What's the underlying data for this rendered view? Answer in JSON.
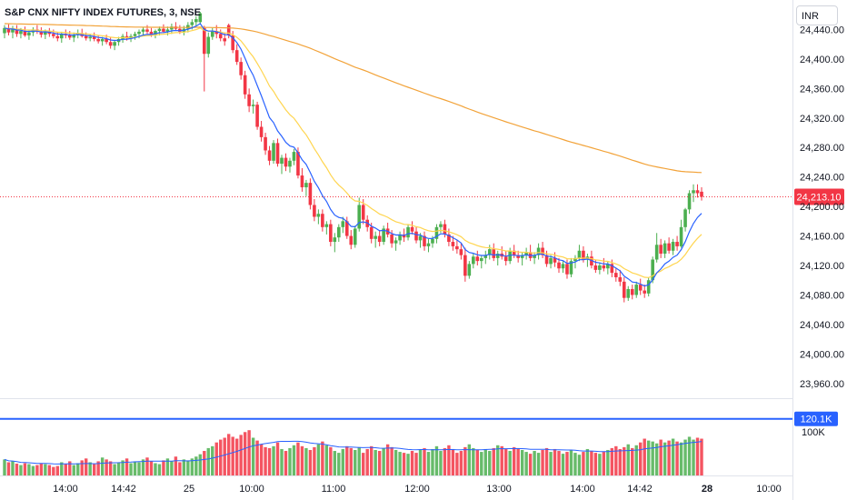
{
  "header": {
    "title": "S&P CNX NIFTY INDEX FUTURES, 3, NSE",
    "currency": "INR"
  },
  "price_axis": {
    "ticks": [
      "24,440.00",
      "24,400.00",
      "24,360.00",
      "24,320.00",
      "24,280.00",
      "24,240.00",
      "24,200.00",
      "24,160.00",
      "24,120.00",
      "24,080.00",
      "24,040.00",
      "24,000.00",
      "23,960.00"
    ],
    "tick_values": [
      24440,
      24400,
      24360,
      24320,
      24280,
      24240,
      24200,
      24160,
      24120,
      24080,
      24040,
      24000,
      23960
    ],
    "last_price_label": "24,213.10",
    "last_price": 24213.1
  },
  "volume_axis": {
    "ticks": [
      "100K"
    ],
    "tick_values": [
      100000
    ],
    "level_label": "120.1K",
    "level_value": 120100
  },
  "time_axis": {
    "labels": [
      "14:00",
      "14:42",
      "25",
      "10:00",
      "11:00",
      "12:00",
      "13:00",
      "14:00",
      "14:42",
      "28",
      "10:00"
    ],
    "bold": [
      false,
      false,
      false,
      false,
      false,
      false,
      false,
      false,
      false,
      true,
      false
    ]
  },
  "colors": {
    "up": "#4caf50",
    "down": "#f23645",
    "ma_fast": "#2962ff",
    "ma_mid": "#ffd54f",
    "ma_slow": "#f2a33a",
    "level_line": "#2962ff",
    "price_label_bg": "#f23645"
  },
  "chart_data": {
    "type": "candlestick",
    "ylim": [
      23940,
      24480
    ],
    "candles": [
      {
        "o": 24435,
        "h": 24446,
        "l": 24428,
        "c": 24442
      },
      {
        "o": 24442,
        "h": 24447,
        "l": 24432,
        "c": 24436
      },
      {
        "o": 24436,
        "h": 24445,
        "l": 24428,
        "c": 24440
      },
      {
        "o": 24440,
        "h": 24446,
        "l": 24430,
        "c": 24434
      },
      {
        "o": 24434,
        "h": 24442,
        "l": 24428,
        "c": 24438
      },
      {
        "o": 24438,
        "h": 24444,
        "l": 24430,
        "c": 24432
      },
      {
        "o": 24432,
        "h": 24440,
        "l": 24426,
        "c": 24436
      },
      {
        "o": 24436,
        "h": 24443,
        "l": 24431,
        "c": 24440
      },
      {
        "o": 24440,
        "h": 24446,
        "l": 24434,
        "c": 24437
      },
      {
        "o": 24437,
        "h": 24443,
        "l": 24429,
        "c": 24433
      },
      {
        "o": 24433,
        "h": 24440,
        "l": 24427,
        "c": 24437
      },
      {
        "o": 24437,
        "h": 24442,
        "l": 24430,
        "c": 24434
      },
      {
        "o": 24434,
        "h": 24440,
        "l": 24428,
        "c": 24431
      },
      {
        "o": 24431,
        "h": 24437,
        "l": 24424,
        "c": 24428
      },
      {
        "o": 24428,
        "h": 24437,
        "l": 24422,
        "c": 24434
      },
      {
        "o": 24434,
        "h": 24440,
        "l": 24428,
        "c": 24432
      },
      {
        "o": 24432,
        "h": 24438,
        "l": 24426,
        "c": 24429
      },
      {
        "o": 24429,
        "h": 24436,
        "l": 24423,
        "c": 24433
      },
      {
        "o": 24433,
        "h": 24440,
        "l": 24428,
        "c": 24435
      },
      {
        "o": 24435,
        "h": 24441,
        "l": 24429,
        "c": 24431
      },
      {
        "o": 24431,
        "h": 24436,
        "l": 24425,
        "c": 24428
      },
      {
        "o": 24428,
        "h": 24434,
        "l": 24424,
        "c": 24430
      },
      {
        "o": 24430,
        "h": 24436,
        "l": 24424,
        "c": 24427
      },
      {
        "o": 24427,
        "h": 24432,
        "l": 24421,
        "c": 24424
      },
      {
        "o": 24424,
        "h": 24430,
        "l": 24418,
        "c": 24427
      },
      {
        "o": 24427,
        "h": 24433,
        "l": 24420,
        "c": 24423
      },
      {
        "o": 24423,
        "h": 24429,
        "l": 24414,
        "c": 24418
      },
      {
        "o": 24418,
        "h": 24426,
        "l": 24412,
        "c": 24423
      },
      {
        "o": 24423,
        "h": 24430,
        "l": 24418,
        "c": 24427
      },
      {
        "o": 24427,
        "h": 24434,
        "l": 24422,
        "c": 24431
      },
      {
        "o": 24431,
        "h": 24437,
        "l": 24425,
        "c": 24428
      },
      {
        "o": 24428,
        "h": 24434,
        "l": 24423,
        "c": 24431
      },
      {
        "o": 24431,
        "h": 24437,
        "l": 24426,
        "c": 24434
      },
      {
        "o": 24434,
        "h": 24440,
        "l": 24428,
        "c": 24437
      },
      {
        "o": 24437,
        "h": 24443,
        "l": 24431,
        "c": 24440
      },
      {
        "o": 24440,
        "h": 24446,
        "l": 24434,
        "c": 24437
      },
      {
        "o": 24437,
        "h": 24442,
        "l": 24430,
        "c": 24433
      },
      {
        "o": 24433,
        "h": 24440,
        "l": 24428,
        "c": 24438
      },
      {
        "o": 24438,
        "h": 24444,
        "l": 24432,
        "c": 24441
      },
      {
        "o": 24441,
        "h": 24447,
        "l": 24435,
        "c": 24437
      },
      {
        "o": 24437,
        "h": 24444,
        "l": 24432,
        "c": 24440
      },
      {
        "o": 24440,
        "h": 24448,
        "l": 24434,
        "c": 24444
      },
      {
        "o": 24444,
        "h": 24450,
        "l": 24438,
        "c": 24441
      },
      {
        "o": 24441,
        "h": 24446,
        "l": 24434,
        "c": 24437
      },
      {
        "o": 24437,
        "h": 24445,
        "l": 24432,
        "c": 24441
      },
      {
        "o": 24441,
        "h": 24450,
        "l": 24436,
        "c": 24446
      },
      {
        "o": 24446,
        "h": 24454,
        "l": 24440,
        "c": 24450
      },
      {
        "o": 24450,
        "h": 24458,
        "l": 24445,
        "c": 24454
      },
      {
        "o": 24450,
        "h": 24464,
        "l": 24448,
        "c": 24462
      },
      {
        "o": 24442,
        "h": 24445,
        "l": 24356,
        "c": 24407
      },
      {
        "o": 24407,
        "h": 24436,
        "l": 24402,
        "c": 24430
      },
      {
        "o": 24430,
        "h": 24442,
        "l": 24426,
        "c": 24438
      },
      {
        "o": 24438,
        "h": 24446,
        "l": 24428,
        "c": 24434
      },
      {
        "o": 24434,
        "h": 24440,
        "l": 24424,
        "c": 24428
      },
      {
        "o": 24428,
        "h": 24436,
        "l": 24418,
        "c": 24424
      },
      {
        "o": 24446,
        "h": 24448,
        "l": 24428,
        "c": 24432
      },
      {
        "o": 24432,
        "h": 24438,
        "l": 24408,
        "c": 24412
      },
      {
        "o": 24412,
        "h": 24420,
        "l": 24392,
        "c": 24396
      },
      {
        "o": 24396,
        "h": 24402,
        "l": 24372,
        "c": 24378
      },
      {
        "o": 24378,
        "h": 24384,
        "l": 24346,
        "c": 24352
      },
      {
        "o": 24352,
        "h": 24360,
        "l": 24328,
        "c": 24336
      },
      {
        "o": 24336,
        "h": 24345,
        "l": 24326,
        "c": 24338
      },
      {
        "o": 24338,
        "h": 24342,
        "l": 24304,
        "c": 24308
      },
      {
        "o": 24308,
        "h": 24316,
        "l": 24288,
        "c": 24294
      },
      {
        "o": 24294,
        "h": 24300,
        "l": 24270,
        "c": 24276
      },
      {
        "o": 24276,
        "h": 24282,
        "l": 24256,
        "c": 24262
      },
      {
        "o": 24262,
        "h": 24290,
        "l": 24258,
        "c": 24286
      },
      {
        "o": 24286,
        "h": 24292,
        "l": 24254,
        "c": 24258
      },
      {
        "o": 24258,
        "h": 24270,
        "l": 24244,
        "c": 24266
      },
      {
        "o": 24266,
        "h": 24272,
        "l": 24248,
        "c": 24254
      },
      {
        "o": 24254,
        "h": 24266,
        "l": 24246,
        "c": 24262
      },
      {
        "o": 24262,
        "h": 24278,
        "l": 24256,
        "c": 24274
      },
      {
        "o": 24274,
        "h": 24280,
        "l": 24238,
        "c": 24242
      },
      {
        "o": 24242,
        "h": 24252,
        "l": 24220,
        "c": 24226
      },
      {
        "o": 24226,
        "h": 24236,
        "l": 24214,
        "c": 24232
      },
      {
        "o": 24232,
        "h": 24238,
        "l": 24196,
        "c": 24202
      },
      {
        "o": 24202,
        "h": 24210,
        "l": 24180,
        "c": 24186
      },
      {
        "o": 24186,
        "h": 24196,
        "l": 24176,
        "c": 24190
      },
      {
        "o": 24190,
        "h": 24196,
        "l": 24166,
        "c": 24172
      },
      {
        "o": 24172,
        "h": 24180,
        "l": 24162,
        "c": 24176
      },
      {
        "o": 24176,
        "h": 24182,
        "l": 24146,
        "c": 24152
      },
      {
        "o": 24152,
        "h": 24164,
        "l": 24138,
        "c": 24158
      },
      {
        "o": 24158,
        "h": 24176,
        "l": 24152,
        "c": 24172
      },
      {
        "o": 24172,
        "h": 24186,
        "l": 24164,
        "c": 24180
      },
      {
        "o": 24180,
        "h": 24186,
        "l": 24156,
        "c": 24160
      },
      {
        "o": 24160,
        "h": 24168,
        "l": 24142,
        "c": 24148
      },
      {
        "o": 24148,
        "h": 24174,
        "l": 24144,
        "c": 24170
      },
      {
        "o": 24170,
        "h": 24212,
        "l": 24166,
        "c": 24202
      },
      {
        "o": 24202,
        "h": 24210,
        "l": 24176,
        "c": 24182
      },
      {
        "o": 24182,
        "h": 24188,
        "l": 24166,
        "c": 24172
      },
      {
        "o": 24172,
        "h": 24178,
        "l": 24150,
        "c": 24156
      },
      {
        "o": 24156,
        "h": 24166,
        "l": 24144,
        "c": 24160
      },
      {
        "o": 24160,
        "h": 24168,
        "l": 24146,
        "c": 24152
      },
      {
        "o": 24152,
        "h": 24174,
        "l": 24148,
        "c": 24170
      },
      {
        "o": 24170,
        "h": 24178,
        "l": 24158,
        "c": 24162
      },
      {
        "o": 24162,
        "h": 24168,
        "l": 24144,
        "c": 24150
      },
      {
        "o": 24150,
        "h": 24158,
        "l": 24140,
        "c": 24154
      },
      {
        "o": 24154,
        "h": 24166,
        "l": 24148,
        "c": 24162
      },
      {
        "o": 24162,
        "h": 24170,
        "l": 24152,
        "c": 24158
      },
      {
        "o": 24158,
        "h": 24176,
        "l": 24154,
        "c": 24172
      },
      {
        "o": 24172,
        "h": 24180,
        "l": 24162,
        "c": 24166
      },
      {
        "o": 24166,
        "h": 24172,
        "l": 24150,
        "c": 24154
      },
      {
        "o": 24154,
        "h": 24164,
        "l": 24144,
        "c": 24160
      },
      {
        "o": 24160,
        "h": 24166,
        "l": 24140,
        "c": 24146
      },
      {
        "o": 24146,
        "h": 24156,
        "l": 24138,
        "c": 24150
      },
      {
        "o": 24150,
        "h": 24160,
        "l": 24144,
        "c": 24156
      },
      {
        "o": 24156,
        "h": 24176,
        "l": 24150,
        "c": 24172
      },
      {
        "o": 24172,
        "h": 24180,
        "l": 24164,
        "c": 24176
      },
      {
        "o": 24176,
        "h": 24182,
        "l": 24158,
        "c": 24162
      },
      {
        "o": 24162,
        "h": 24170,
        "l": 24146,
        "c": 24152
      },
      {
        "o": 24152,
        "h": 24160,
        "l": 24140,
        "c": 24146
      },
      {
        "o": 24146,
        "h": 24154,
        "l": 24136,
        "c": 24142
      },
      {
        "o": 24142,
        "h": 24150,
        "l": 24128,
        "c": 24134
      },
      {
        "o": 24134,
        "h": 24144,
        "l": 24098,
        "c": 24106
      },
      {
        "o": 24106,
        "h": 24126,
        "l": 24102,
        "c": 24122
      },
      {
        "o": 24122,
        "h": 24136,
        "l": 24116,
        "c": 24132
      },
      {
        "o": 24132,
        "h": 24140,
        "l": 24120,
        "c": 24126
      },
      {
        "o": 24126,
        "h": 24134,
        "l": 24116,
        "c": 24130
      },
      {
        "o": 24130,
        "h": 24140,
        "l": 24122,
        "c": 24134
      },
      {
        "o": 24134,
        "h": 24148,
        "l": 24128,
        "c": 24142
      },
      {
        "o": 24142,
        "h": 24150,
        "l": 24126,
        "c": 24130
      },
      {
        "o": 24130,
        "h": 24140,
        "l": 24120,
        "c": 24136
      },
      {
        "o": 24136,
        "h": 24146,
        "l": 24128,
        "c": 24132
      },
      {
        "o": 24132,
        "h": 24140,
        "l": 24120,
        "c": 24126
      },
      {
        "o": 24126,
        "h": 24144,
        "l": 24122,
        "c": 24140
      },
      {
        "o": 24140,
        "h": 24148,
        "l": 24130,
        "c": 24134
      },
      {
        "o": 24134,
        "h": 24140,
        "l": 24124,
        "c": 24130
      },
      {
        "o": 24130,
        "h": 24138,
        "l": 24120,
        "c": 24134
      },
      {
        "o": 24134,
        "h": 24144,
        "l": 24128,
        "c": 24138
      },
      {
        "o": 24138,
        "h": 24148,
        "l": 24126,
        "c": 24130
      },
      {
        "o": 24130,
        "h": 24138,
        "l": 24122,
        "c": 24134
      },
      {
        "o": 24134,
        "h": 24150,
        "l": 24128,
        "c": 24144
      },
      {
        "o": 24144,
        "h": 24152,
        "l": 24130,
        "c": 24134
      },
      {
        "o": 24134,
        "h": 24140,
        "l": 24118,
        "c": 24122
      },
      {
        "o": 24122,
        "h": 24134,
        "l": 24116,
        "c": 24130
      },
      {
        "o": 24130,
        "h": 24138,
        "l": 24118,
        "c": 24124
      },
      {
        "o": 24124,
        "h": 24130,
        "l": 24110,
        "c": 24116
      },
      {
        "o": 24116,
        "h": 24126,
        "l": 24110,
        "c": 24122
      },
      {
        "o": 24122,
        "h": 24128,
        "l": 24102,
        "c": 24108
      },
      {
        "o": 24108,
        "h": 24130,
        "l": 24104,
        "c": 24126
      },
      {
        "o": 24126,
        "h": 24134,
        "l": 24116,
        "c": 24130
      },
      {
        "o": 24130,
        "h": 24148,
        "l": 24126,
        "c": 24140
      },
      {
        "o": 24140,
        "h": 24146,
        "l": 24124,
        "c": 24128
      },
      {
        "o": 24128,
        "h": 24136,
        "l": 24118,
        "c": 24132
      },
      {
        "o": 24132,
        "h": 24140,
        "l": 24116,
        "c": 24120
      },
      {
        "o": 24120,
        "h": 24128,
        "l": 24110,
        "c": 24114
      },
      {
        "o": 24114,
        "h": 24124,
        "l": 24108,
        "c": 24120
      },
      {
        "o": 24120,
        "h": 24130,
        "l": 24112,
        "c": 24116
      },
      {
        "o": 24116,
        "h": 24126,
        "l": 24108,
        "c": 24122
      },
      {
        "o": 24122,
        "h": 24128,
        "l": 24104,
        "c": 24110
      },
      {
        "o": 24110,
        "h": 24116,
        "l": 24098,
        "c": 24104
      },
      {
        "o": 24104,
        "h": 24114,
        "l": 24092,
        "c": 24098
      },
      {
        "o": 24098,
        "h": 24104,
        "l": 24070,
        "c": 24076
      },
      {
        "o": 24076,
        "h": 24092,
        "l": 24072,
        "c": 24088
      },
      {
        "o": 24088,
        "h": 24094,
        "l": 24074,
        "c": 24080
      },
      {
        "o": 24080,
        "h": 24098,
        "l": 24076,
        "c": 24094
      },
      {
        "o": 24094,
        "h": 24102,
        "l": 24080,
        "c": 24086
      },
      {
        "o": 24086,
        "h": 24094,
        "l": 24076,
        "c": 24082
      },
      {
        "o": 24082,
        "h": 24104,
        "l": 24078,
        "c": 24100
      },
      {
        "o": 24100,
        "h": 24132,
        "l": 24096,
        "c": 24128
      },
      {
        "o": 24128,
        "h": 24164,
        "l": 24124,
        "c": 24148
      },
      {
        "o": 24148,
        "h": 24156,
        "l": 24130,
        "c": 24136
      },
      {
        "o": 24136,
        "h": 24154,
        "l": 24130,
        "c": 24150
      },
      {
        "o": 24150,
        "h": 24158,
        "l": 24136,
        "c": 24140
      },
      {
        "o": 24140,
        "h": 24156,
        "l": 24134,
        "c": 24152
      },
      {
        "o": 24152,
        "h": 24160,
        "l": 24140,
        "c": 24146
      },
      {
        "o": 24146,
        "h": 24182,
        "l": 24144,
        "c": 24172
      },
      {
        "o": 24172,
        "h": 24198,
        "l": 24166,
        "c": 24196
      },
      {
        "o": 24196,
        "h": 24222,
        "l": 24190,
        "c": 24218
      },
      {
        "o": 24218,
        "h": 24230,
        "l": 24206,
        "c": 24222
      },
      {
        "o": 24222,
        "h": 24230,
        "l": 24212,
        "c": 24218
      },
      {
        "o": 24220,
        "h": 24226,
        "l": 24208,
        "c": 24213.1
      }
    ],
    "volume": [
      34,
      28,
      30,
      25,
      22,
      26,
      24,
      20,
      22,
      26,
      24,
      22,
      18,
      20,
      28,
      24,
      30,
      22,
      26,
      32,
      36,
      28,
      24,
      30,
      38,
      34,
      30,
      24,
      28,
      32,
      36,
      26,
      30,
      28,
      34,
      38,
      30,
      26,
      24,
      32,
      36,
      30,
      40,
      28,
      34,
      32,
      36,
      40,
      45,
      52,
      58,
      62,
      70,
      76,
      80,
      88,
      82,
      78,
      86,
      92,
      96,
      80,
      74,
      66,
      60,
      58,
      62,
      70,
      56,
      52,
      58,
      64,
      70,
      62,
      58,
      54,
      60,
      66,
      72,
      64,
      60,
      52,
      48,
      56,
      62,
      58,
      54,
      60,
      48,
      56,
      62,
      54,
      52,
      58,
      66,
      60,
      54,
      50,
      48,
      46,
      52,
      48,
      54,
      58,
      50,
      56,
      62,
      52,
      58,
      64,
      56,
      48,
      52,
      60,
      66,
      58,
      54,
      50,
      56,
      52,
      58,
      64,
      62,
      56,
      52,
      60,
      58,
      54,
      50,
      46,
      52,
      48,
      54,
      58,
      50,
      56,
      52,
      46,
      50,
      54,
      48,
      44,
      50,
      56,
      52,
      48,
      46,
      50,
      54,
      58,
      62,
      56,
      60,
      66,
      58,
      64,
      70,
      78,
      74,
      72,
      68,
      76,
      70,
      74,
      78,
      72,
      70,
      76,
      82,
      76,
      80,
      78
    ],
    "volume_ylim": [
      0,
      160000
    ],
    "volume_scale": 1000,
    "ema_fast_period": 9,
    "ema_mid_period": 20,
    "ema_slow_period": 200,
    "vol_ma_period": 20
  }
}
